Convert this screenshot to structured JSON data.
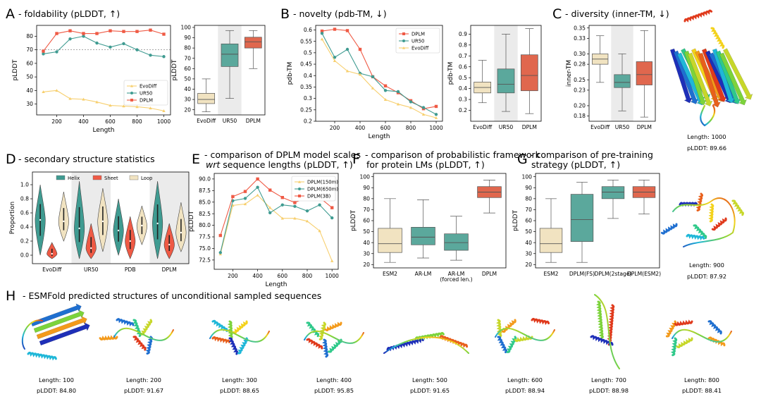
{
  "panels": {
    "A": {
      "letter": "A",
      "title": "- foldability (pLDDT, ↑)"
    },
    "B": {
      "letter": "B",
      "title": "- novelty (pdb-TM, ↓)"
    },
    "C": {
      "letter": "C",
      "title": "- diversity (inner-TM, ↓)"
    },
    "D": {
      "letter": "D",
      "title": "- secondary structure statistics"
    },
    "E": {
      "letter": "E",
      "title_line1": "- comparison of DPLM model scales",
      "title_wrt": "wrt",
      "title_line2": " sequence lengths (pLDDT, ↑)"
    },
    "F": {
      "letter": "F",
      "title_line1": "- comparison of probabilistic framework",
      "title_line2": "for protein LMs (pLDDT, ↑)"
    },
    "G": {
      "letter": "G",
      "title_line1": "- comparison of pre-training",
      "title_line2": "strategy (pLDDT, ↑)"
    },
    "H": {
      "letter": "H",
      "title": "- ESMFold predicted structures of unconditional sampled sequences"
    }
  },
  "colors": {
    "evodiff": "#f7cf6e",
    "ur50": "#3f9b91",
    "dplm": "#ef5a45",
    "box_evodiff": "#f1e3c1",
    "box_ur50": "#5ba89c",
    "box_dplm": "#e0674e",
    "shade": "#ebebeb",
    "dplm150": "#f7cf6e",
    "dplm650": "#3f9b91",
    "dplm3b": "#ef5a45"
  },
  "chart_data": [
    {
      "id": "A-line",
      "type": "line",
      "xlabel": "Length",
      "ylabel": "pLDDT",
      "x": [
        100,
        200,
        300,
        400,
        500,
        600,
        700,
        800,
        900,
        1000
      ],
      "ylim": [
        22,
        88
      ],
      "xlim": [
        50,
        1050
      ],
      "yticks": [
        30,
        40,
        50,
        60,
        70,
        80
      ],
      "xticks": [
        200,
        400,
        600,
        800,
        1000
      ],
      "reference_line": 70,
      "series": [
        {
          "name": "EvoDiff",
          "color": "#f7cf6e",
          "marker": "triangle",
          "values": [
            39,
            40,
            34,
            33.5,
            31.5,
            29,
            28.5,
            28,
            27,
            25
          ]
        },
        {
          "name": "UR50",
          "color": "#3f9b91",
          "marker": "circle",
          "values": [
            67,
            68.5,
            78,
            80,
            75,
            72,
            74.5,
            70,
            66,
            65
          ]
        },
        {
          "name": "DPLM",
          "color": "#ef5a45",
          "marker": "square",
          "values": [
            69,
            82,
            84,
            82,
            82,
            84,
            83.5,
            83.5,
            84.5,
            81.5
          ]
        }
      ],
      "legend": "lower-right"
    },
    {
      "id": "A-box",
      "type": "box",
      "ylabel": "pLDDT",
      "ylim": [
        15,
        102
      ],
      "yticks": [
        20,
        30,
        40,
        50,
        60,
        70,
        80,
        90,
        100
      ],
      "categories": [
        "EvoDiff",
        "UR50",
        "DPLM"
      ],
      "shaded": "UR50",
      "boxes": [
        {
          "whislo": 18,
          "q1": 26,
          "med": 30,
          "q3": 36,
          "whishi": 50
        },
        {
          "whislo": 31,
          "q1": 62,
          "med": 74,
          "q3": 84,
          "whishi": 97
        },
        {
          "whislo": 60,
          "q1": 80,
          "med": 86,
          "q3": 90.5,
          "whishi": 97
        }
      ]
    },
    {
      "id": "B-line",
      "type": "line",
      "xlabel": "Length",
      "ylabel": "pdb-TM",
      "x": [
        100,
        200,
        300,
        400,
        500,
        600,
        700,
        800,
        900,
        1000
      ],
      "ylim": [
        0.2,
        0.62
      ],
      "xlim": [
        50,
        1050
      ],
      "yticks": [
        0.2,
        0.25,
        0.3,
        0.35,
        0.4,
        0.45,
        0.5,
        0.55,
        0.6
      ],
      "xticks": [
        200,
        400,
        600,
        800,
        1000
      ],
      "series": [
        {
          "name": "DPLM",
          "color": "#ef5a45",
          "marker": "square",
          "values": [
            0.595,
            0.603,
            0.597,
            0.515,
            0.395,
            0.355,
            0.325,
            0.29,
            0.255,
            0.265
          ]
        },
        {
          "name": "UR50",
          "color": "#3f9b91",
          "marker": "circle",
          "values": [
            0.585,
            0.48,
            0.515,
            0.41,
            0.395,
            0.335,
            0.33,
            0.285,
            0.26,
            0.23
          ]
        },
        {
          "name": "EvoDiff",
          "color": "#f7cf6e",
          "marker": "triangle",
          "values": [
            0.56,
            0.465,
            0.42,
            0.405,
            0.345,
            0.295,
            0.275,
            0.26,
            0.23,
            0.215
          ]
        }
      ],
      "legend": "upper-right"
    },
    {
      "id": "B-box",
      "type": "box",
      "ylabel": "pdb-TM",
      "ylim": [
        0.1,
        0.98
      ],
      "yticks": [
        0.2,
        0.3,
        0.4,
        0.5,
        0.6,
        0.7,
        0.8,
        0.9
      ],
      "categories": [
        "EvoDiff",
        "UR50",
        "DPLM"
      ],
      "shaded": "UR50",
      "boxes": [
        {
          "whislo": 0.27,
          "q1": 0.36,
          "med": 0.41,
          "q3": 0.46,
          "whishi": 0.66
        },
        {
          "whislo": 0.19,
          "q1": 0.36,
          "med": 0.44,
          "q3": 0.58,
          "whishi": 0.9
        },
        {
          "whislo": 0.17,
          "q1": 0.38,
          "med": 0.52,
          "q3": 0.71,
          "whishi": 0.95
        }
      ]
    },
    {
      "id": "C-box",
      "type": "box",
      "ylabel": "inner-TM",
      "ylim": [
        0.17,
        0.355
      ],
      "yticks": [
        0.18,
        0.2,
        0.23,
        0.25,
        0.28,
        0.3,
        0.33,
        0.35
      ],
      "ytick_labels": [
        "0.18",
        "0.20",
        "0.23",
        "0.25",
        "0.28",
        "0.30",
        "0.33",
        "0.35"
      ],
      "categories": [
        "EvoDiff",
        "UR50",
        "DPLM"
      ],
      "shaded": "UR50",
      "boxes": [
        {
          "whislo": 0.245,
          "q1": 0.28,
          "med": 0.29,
          "q3": 0.3,
          "whishi": 0.335
        },
        {
          "whislo": 0.19,
          "q1": 0.235,
          "med": 0.245,
          "q3": 0.26,
          "whishi": 0.3
        },
        {
          "whislo": 0.178,
          "q1": 0.24,
          "med": 0.26,
          "q3": 0.285,
          "whishi": 0.345
        }
      ]
    },
    {
      "id": "D-violin",
      "type": "violin",
      "ylabel": "Proportion",
      "ylim": [
        -0.12,
        1.18
      ],
      "yticks": [
        0.0,
        0.2,
        0.4,
        0.6,
        0.8,
        1.0
      ],
      "categories": [
        "EvoDiff",
        "UR50",
        "PDB",
        "DPLM"
      ],
      "shaded": [
        "UR50",
        "DPLM"
      ],
      "legend_entries": [
        {
          "name": "Helix",
          "color": "#3f9b91"
        },
        {
          "name": "Sheet",
          "color": "#ef5a45"
        },
        {
          "name": "Loop",
          "color": "#f1e3c1"
        }
      ],
      "groups": [
        {
          "helix": {
            "min": 0.0,
            "max": 1.0,
            "med": 0.5
          },
          "sheet": {
            "min": -0.05,
            "max": 0.18,
            "med": 0.02
          },
          "loop": {
            "min": 0.2,
            "max": 0.9,
            "med": 0.48
          }
        },
        {
          "helix": {
            "min": -0.05,
            "max": 1.05,
            "med": 0.38
          },
          "sheet": {
            "min": -0.05,
            "max": 0.45,
            "med": 0.1
          },
          "loop": {
            "min": 0.05,
            "max": 0.95,
            "med": 0.48
          }
        },
        {
          "helix": {
            "min": 0.0,
            "max": 0.8,
            "med": 0.35
          },
          "sheet": {
            "min": -0.05,
            "max": 0.55,
            "med": 0.2
          },
          "loop": {
            "min": 0.15,
            "max": 0.7,
            "med": 0.42
          }
        },
        {
          "helix": {
            "min": -0.05,
            "max": 1.05,
            "med": 0.45
          },
          "sheet": {
            "min": -0.05,
            "max": 0.45,
            "med": 0.15
          },
          "loop": {
            "min": 0.05,
            "max": 0.75,
            "med": 0.32
          }
        }
      ]
    },
    {
      "id": "E-line",
      "type": "line",
      "xlabel": "Length",
      "ylabel": "pLDDT",
      "x": [
        100,
        200,
        300,
        400,
        500,
        600,
        700,
        800,
        900,
        1000
      ],
      "ylim": [
        70.5,
        91.2
      ],
      "xlim": [
        50,
        1050
      ],
      "yticks": [
        70.0,
        72.5,
        75.0,
        77.5,
        80.0,
        82.5,
        85.0,
        87.5,
        90.0
      ],
      "ytick_labels": [
        "70.0",
        "72.5",
        "75.0",
        "77.5",
        "80.0",
        "82.5",
        "85.0",
        "87.5",
        "90.0"
      ],
      "xticks": [
        200,
        400,
        600,
        800,
        1000
      ],
      "series": [
        {
          "name": "DPLM(150m)",
          "color": "#f7cf6e",
          "marker": "triangle",
          "values": [
            73.8,
            84.3,
            84.6,
            86.5,
            83.8,
            81.5,
            81.5,
            80.9,
            78.8,
            72.3
          ]
        },
        {
          "name": "DPLM(650m)",
          "color": "#3f9b91",
          "marker": "circle",
          "values": [
            74.1,
            85.3,
            85.8,
            88.2,
            82.7,
            84.4,
            84.1,
            83.1,
            84.4,
            81.6
          ]
        },
        {
          "name": "DPLM(3B)",
          "color": "#ef5a45",
          "marker": "square",
          "values": [
            77.8,
            86.2,
            87.3,
            90.0,
            87.6,
            86.0,
            84.9,
            86.1,
            86.0,
            83.8
          ]
        }
      ],
      "legend": "upper-right"
    },
    {
      "id": "F-box",
      "type": "box",
      "ylabel": "pLDDT",
      "ylim": [
        17,
        103
      ],
      "yticks": [
        20,
        30,
        40,
        50,
        60,
        70,
        80,
        90,
        100
      ],
      "categories": [
        "ESM2",
        "AR-LM",
        "AR-LM (forced len.)",
        "DPLM"
      ],
      "boxes": [
        {
          "whislo": 22,
          "q1": 31,
          "med": 39,
          "q3": 53,
          "whishi": 80
        },
        {
          "whislo": 26,
          "q1": 38,
          "med": 45,
          "q3": 54,
          "whishi": 79
        },
        {
          "whislo": 24,
          "q1": 33,
          "med": 40,
          "q3": 48,
          "whishi": 64
        },
        {
          "whislo": 67,
          "q1": 81,
          "med": 86,
          "q3": 91,
          "whishi": 97
        }
      ]
    },
    {
      "id": "G-box",
      "type": "box",
      "ylabel": "pLDDT",
      "ylim": [
        17,
        103
      ],
      "yticks": [
        20,
        30,
        40,
        50,
        60,
        70,
        80,
        90,
        100
      ],
      "categories": [
        "ESM2",
        "DPLM(FS)",
        "DPLM(2stage)",
        "DPLM(ESM2)"
      ],
      "boxes": [
        {
          "whislo": 22,
          "q1": 31,
          "med": 39,
          "q3": 53,
          "whishi": 80
        },
        {
          "whislo": 22,
          "q1": 41,
          "med": 61,
          "q3": 84,
          "whishi": 95
        },
        {
          "whislo": 62,
          "q1": 80,
          "med": 86,
          "q3": 91,
          "whishi": 97
        },
        {
          "whislo": 66,
          "q1": 81,
          "med": 86,
          "q3": 91,
          "whishi": 97
        }
      ]
    }
  ],
  "structures_side": [
    {
      "length": "Length: 1000",
      "plddt": "pLDDT: 89.66"
    },
    {
      "length": "Length: 900",
      "plddt": "pLDDT: 87.92"
    }
  ],
  "structures_row": [
    {
      "length": "Length:  100",
      "plddt": "pLDDT: 84.80"
    },
    {
      "length": "Length:  200",
      "plddt": "pLDDT: 91.67"
    },
    {
      "length": "Length:  300",
      "plddt": "pLDDT: 88.65"
    },
    {
      "length": "Length:  400",
      "plddt": "pLDDT: 95.85"
    },
    {
      "length": "Length:  500",
      "plddt": "pLDDT: 91.65"
    },
    {
      "length": "Length:  600",
      "plddt": "pLDDT: 88.94"
    },
    {
      "length": "Length:  700",
      "plddt": "pLDDT: 88.98"
    },
    {
      "length": "Length:  800",
      "plddt": "pLDDT: 88.41"
    }
  ]
}
